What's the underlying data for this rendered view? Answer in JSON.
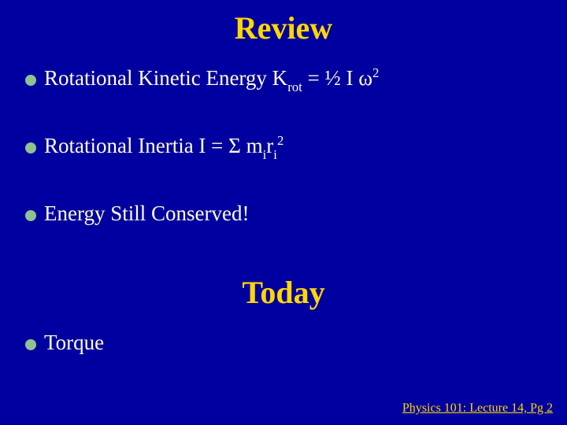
{
  "slide": {
    "background_color": "#0000a0",
    "title_color": "#ffd700",
    "body_text_color": "#fefede",
    "bullet_color": "#8fc28f",
    "title_font_size_pt": 32,
    "body_font_size_pt": 22,
    "footer_font_size_pt": 12
  },
  "headings": {
    "review": "Review",
    "today": "Today"
  },
  "bullets": {
    "b1_part1": "Rotational Kinetic Energy  K",
    "b1_sub1": "rot",
    "b1_part2": " = ½ I ω",
    "b1_sup1": "2",
    "b2_part1": "Rotational Inertia  I = Σ m",
    "b2_sub1": "i",
    "b2_part2": "r",
    "b2_sub2": "i",
    "b2_sup1": "2",
    "b3": "Energy Still Conserved!",
    "b4": "Torque"
  },
  "footer": {
    "text": "Physics 101: Lecture 14, Pg 2"
  }
}
